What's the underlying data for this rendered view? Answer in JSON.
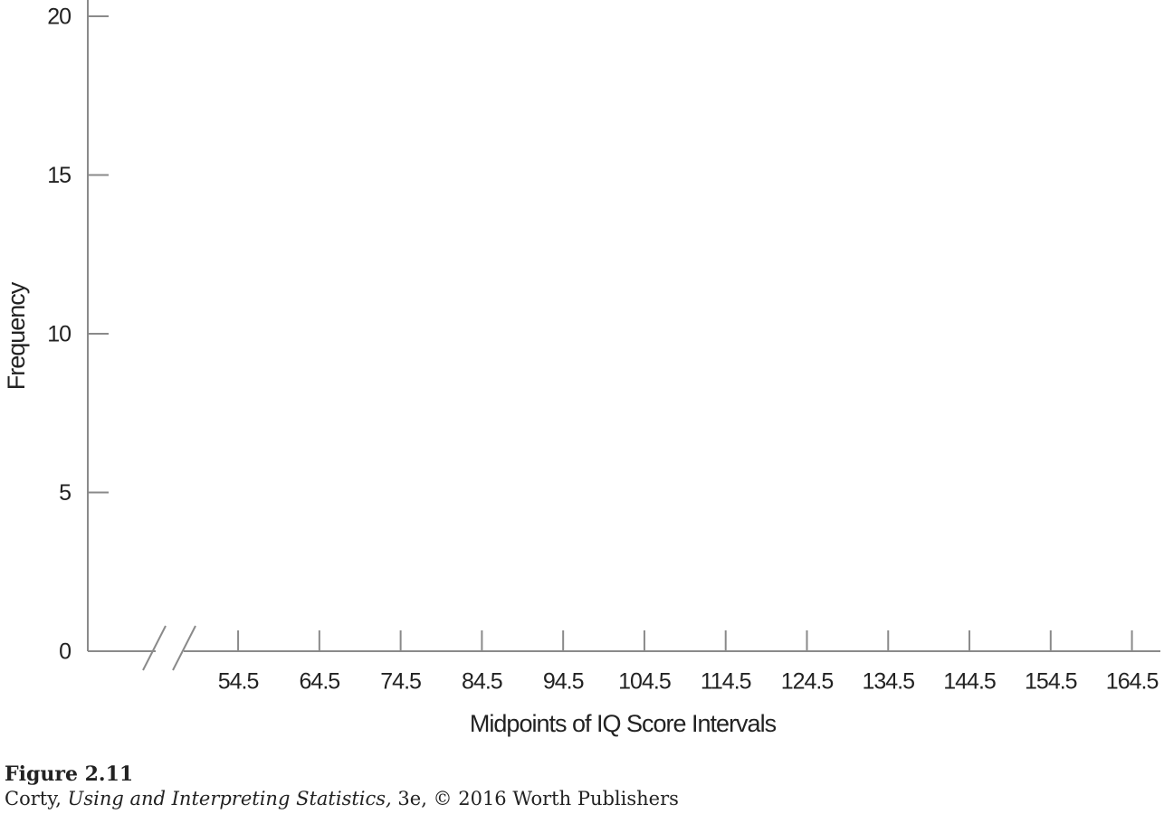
{
  "chart_data": {
    "type": "line",
    "x_label": "Midpoints of IQ Score Intervals",
    "y_label": "Frequency",
    "xlim": [
      36,
      168
    ],
    "xticks": [
      54.5,
      64.5,
      74.5,
      84.5,
      94.5,
      104.5,
      114.5,
      124.5,
      134.5,
      144.5,
      154.5,
      164.5
    ],
    "ylim": [
      0,
      20
    ],
    "yticks": [
      0,
      5,
      10,
      15,
      20
    ],
    "axis_color": "#8a8a8a",
    "axis_break": true
  },
  "caption": {
    "figure": "Figure 2.11",
    "credit_author": "Corty,",
    "credit_title": "Using and Interpreting Statistics,",
    "credit_rest": "3e, © 2016 Worth Publishers"
  }
}
